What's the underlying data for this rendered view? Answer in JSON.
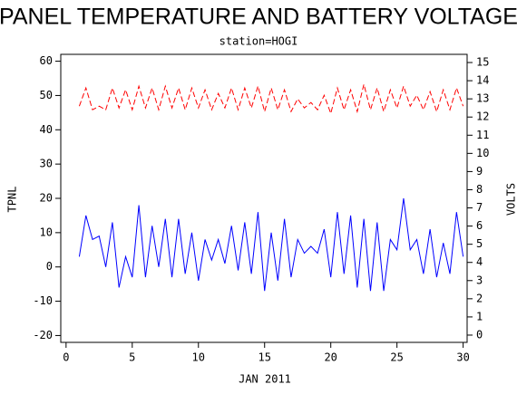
{
  "chart_data": {
    "type": "line",
    "title": "PANEL TEMPERATURE AND BATTERY VOLTAGE",
    "subtitle": "station=HOGI",
    "x_label": "JAN 2011",
    "y_label": "TPNL",
    "y2_label": "VOLTS",
    "x": [
      1,
      1.5,
      2,
      2.5,
      3,
      3.5,
      4,
      4.5,
      5,
      5.5,
      6,
      6.5,
      7,
      7.5,
      8,
      8.5,
      9,
      9.5,
      10,
      10.5,
      11,
      11.5,
      12,
      12.5,
      13,
      13.5,
      14,
      14.5,
      15,
      15.5,
      16,
      16.5,
      17,
      17.5,
      18,
      18.5,
      19,
      19.5,
      20,
      20.5,
      21,
      21.5,
      22,
      22.5,
      23,
      23.5,
      24,
      24.5,
      25,
      25.5,
      26,
      26.5,
      27,
      27.5,
      28,
      28.5,
      29,
      29.5,
      30
    ],
    "series": [
      {
        "name": "TPNL",
        "color": "#0000ff",
        "axis": "y",
        "dashed": false,
        "values": [
          3,
          15,
          8,
          9,
          0,
          13,
          -6,
          3,
          -3,
          18,
          -3,
          12,
          0,
          14,
          -3,
          14,
          -2,
          10,
          -4,
          8,
          2,
          8,
          1,
          12,
          -1,
          13,
          -2,
          16,
          -7,
          10,
          -4,
          14,
          -3,
          8,
          4,
          6,
          4,
          11,
          -3,
          16,
          -2,
          15,
          -6,
          14,
          -7,
          13,
          -7,
          8,
          5,
          20,
          5,
          8,
          -2,
          11,
          -3,
          7,
          -2,
          16,
          3
        ]
      },
      {
        "name": "VOLTS",
        "color": "#ff0000",
        "axis": "y2",
        "dashed": true,
        "values": [
          12.6,
          13.6,
          12.4,
          12.6,
          12.4,
          13.6,
          12.5,
          13.5,
          12.4,
          13.7,
          12.5,
          13.6,
          12.4,
          13.7,
          12.5,
          13.6,
          12.4,
          13.6,
          12.5,
          13.5,
          12.4,
          13.3,
          12.5,
          13.6,
          12.4,
          13.6,
          12.5,
          13.7,
          12.3,
          13.6,
          12.4,
          13.5,
          12.3,
          13.0,
          12.5,
          12.8,
          12.4,
          13.2,
          12.2,
          13.6,
          12.4,
          13.5,
          12.3,
          13.8,
          12.4,
          13.6,
          12.3,
          13.5,
          12.5,
          13.7,
          12.6,
          13.2,
          12.4,
          13.4,
          12.3,
          13.5,
          12.4,
          13.6,
          12.6
        ]
      }
    ],
    "xlim": [
      -0.4,
      30.3
    ],
    "xticks": [
      0,
      5,
      10,
      15,
      20,
      25,
      30
    ],
    "ylim": [
      -22,
      62
    ],
    "yticks": [
      -20,
      -10,
      0,
      10,
      20,
      30,
      40,
      50,
      60
    ],
    "y2lim": [
      -0.4,
      15.45
    ],
    "y2ticks": [
      0,
      1,
      2,
      3,
      4,
      5,
      6,
      7,
      8,
      9,
      10,
      11,
      12,
      13,
      14,
      15
    ]
  }
}
